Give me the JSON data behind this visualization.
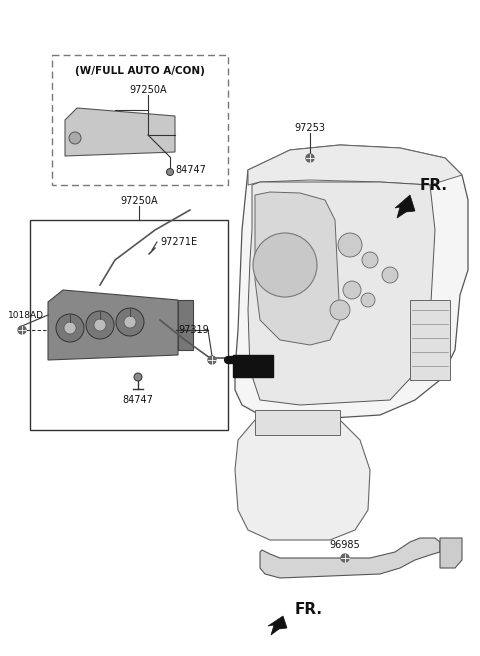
{
  "bg_color": "#ffffff",
  "figsize": [
    4.8,
    6.56
  ],
  "dpi": 100,
  "box1_label": "(W/FULL AUTO A/CON)",
  "part_97250A": "97250A",
  "part_84747": "84747",
  "part_97271E": "97271E",
  "part_97319": "97319",
  "part_1018AD": "1018AD",
  "part_97253": "97253",
  "part_96985": "96985",
  "fr_label": "FR.",
  "lc": "#333333",
  "tc": "#111111"
}
